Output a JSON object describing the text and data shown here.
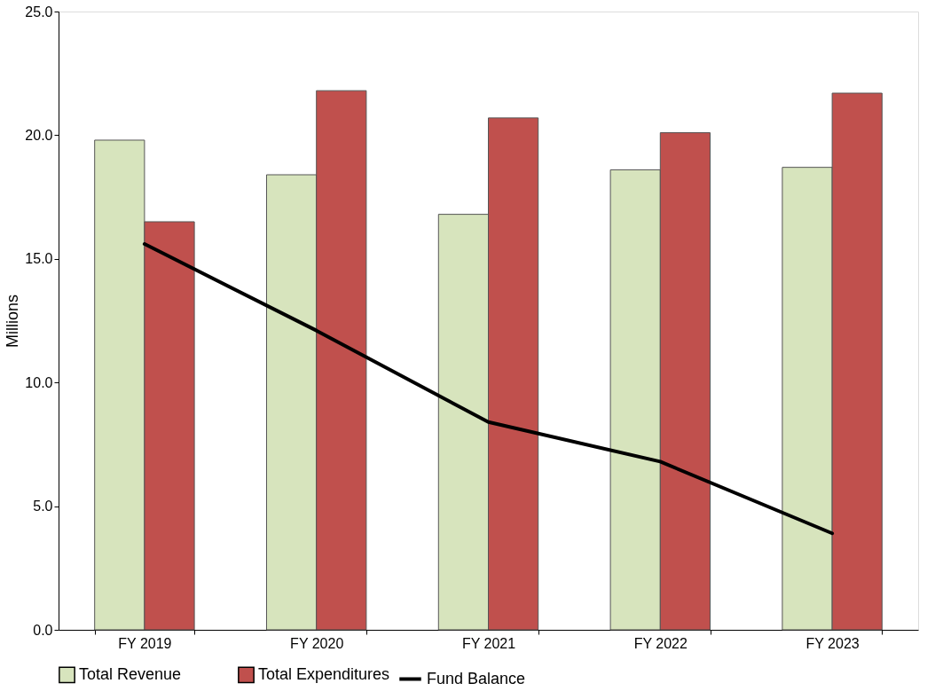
{
  "chart_data": {
    "type": "bar",
    "ylabel": "Millions",
    "categories": [
      "FY 2019",
      "FY 2020",
      "FY 2021",
      "FY 2022",
      "FY 2023"
    ],
    "series": [
      {
        "name": "Total Revenue",
        "color": "#d7e4bd",
        "values": [
          19.8,
          18.4,
          16.8,
          18.6,
          18.7
        ]
      },
      {
        "name": "Total Expenditures",
        "color": "#c0504d",
        "values": [
          16.5,
          21.8,
          20.7,
          20.1,
          21.7
        ]
      },
      {
        "name": "Fund Balance",
        "type": "line",
        "color": "#000000",
        "values": [
          15.6,
          12.1,
          8.4,
          6.8,
          3.9
        ]
      }
    ],
    "ylim": [
      0,
      25
    ],
    "yticks": [
      {
        "value": 0,
        "label": "0.0"
      },
      {
        "value": 5,
        "label": "5.0"
      },
      {
        "value": 10,
        "label": "10.0"
      },
      {
        "value": 15,
        "label": "15.0"
      },
      {
        "value": 20,
        "label": "20.0"
      },
      {
        "value": 25,
        "label": "25.0"
      }
    ],
    "grid": false,
    "legend": "bottom",
    "marker": "none",
    "line_style": "solid"
  }
}
